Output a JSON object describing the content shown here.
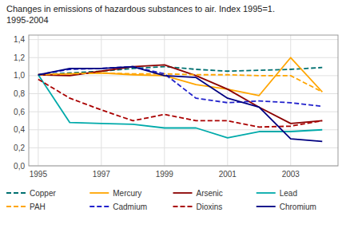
{
  "chart_data": {
    "type": "line",
    "title": "Changes in emissions of hazardous substances to air. Index 1995=1.\n1995-2004",
    "x": [
      1995,
      1996,
      1997,
      1998,
      1999,
      2000,
      2001,
      2002,
      2003,
      2004
    ],
    "series": [
      {
        "name": "Copper",
        "color": "#007070",
        "line_style": "dashed",
        "values": [
          1.01,
          1.03,
          1.05,
          1.08,
          1.1,
          1.07,
          1.05,
          1.06,
          1.07,
          1.09
        ]
      },
      {
        "name": "Mercury",
        "color": "#FFA500",
        "line_style": "solid",
        "values": [
          1.01,
          1.02,
          1.03,
          1.01,
          1.0,
          0.9,
          0.85,
          0.78,
          1.2,
          0.82
        ]
      },
      {
        "name": "Arsenic",
        "color": "#8B0000",
        "line_style": "solid",
        "values": [
          1.01,
          1.0,
          1.05,
          1.1,
          1.12,
          1.0,
          0.85,
          0.65,
          0.47,
          0.5
        ]
      },
      {
        "name": "Lead",
        "color": "#00AAAA",
        "line_style": "solid",
        "values": [
          1.01,
          0.48,
          0.47,
          0.46,
          0.42,
          0.42,
          0.31,
          0.38,
          0.38,
          0.4
        ]
      },
      {
        "name": "PAH",
        "color": "#FFA500",
        "line_style": "dashed",
        "values": [
          1.01,
          1.02,
          1.03,
          1.02,
          1.02,
          1.01,
          1.01,
          1.0,
          1.0,
          0.82
        ]
      },
      {
        "name": "Cadmium",
        "color": "#2222CC",
        "line_style": "dashed",
        "values": [
          1.01,
          1.07,
          1.08,
          1.1,
          1.02,
          0.75,
          0.7,
          0.72,
          0.7,
          0.66
        ]
      },
      {
        "name": "Dioxins",
        "color": "#AA0000",
        "line_style": "dashed",
        "values": [
          0.96,
          0.75,
          0.62,
          0.5,
          0.57,
          0.5,
          0.5,
          0.43,
          0.44,
          0.5
        ]
      },
      {
        "name": "Chromium",
        "color": "#000080",
        "line_style": "solid",
        "values": [
          1.01,
          1.08,
          1.08,
          1.1,
          1.0,
          0.98,
          0.75,
          0.65,
          0.3,
          0.27
        ]
      }
    ],
    "xlim": [
      1994.7,
      2004.5
    ],
    "xticks": [
      1995,
      1997,
      1999,
      2001,
      2003
    ],
    "ylim": [
      0.0,
      1.45
    ],
    "yticks": [
      {
        "value": 0.0,
        "label": "0,0"
      },
      {
        "value": 0.2,
        "label": "0,2"
      },
      {
        "value": 0.4,
        "label": "0,4"
      },
      {
        "value": 0.6,
        "label": "0,6"
      },
      {
        "value": 0.8,
        "label": "0,8"
      },
      {
        "value": 1.0,
        "label": "1,0"
      },
      {
        "value": 1.2,
        "label": "1,2"
      },
      {
        "value": 1.4,
        "label": "1,4"
      }
    ],
    "grid": true,
    "legend": "bottom"
  }
}
